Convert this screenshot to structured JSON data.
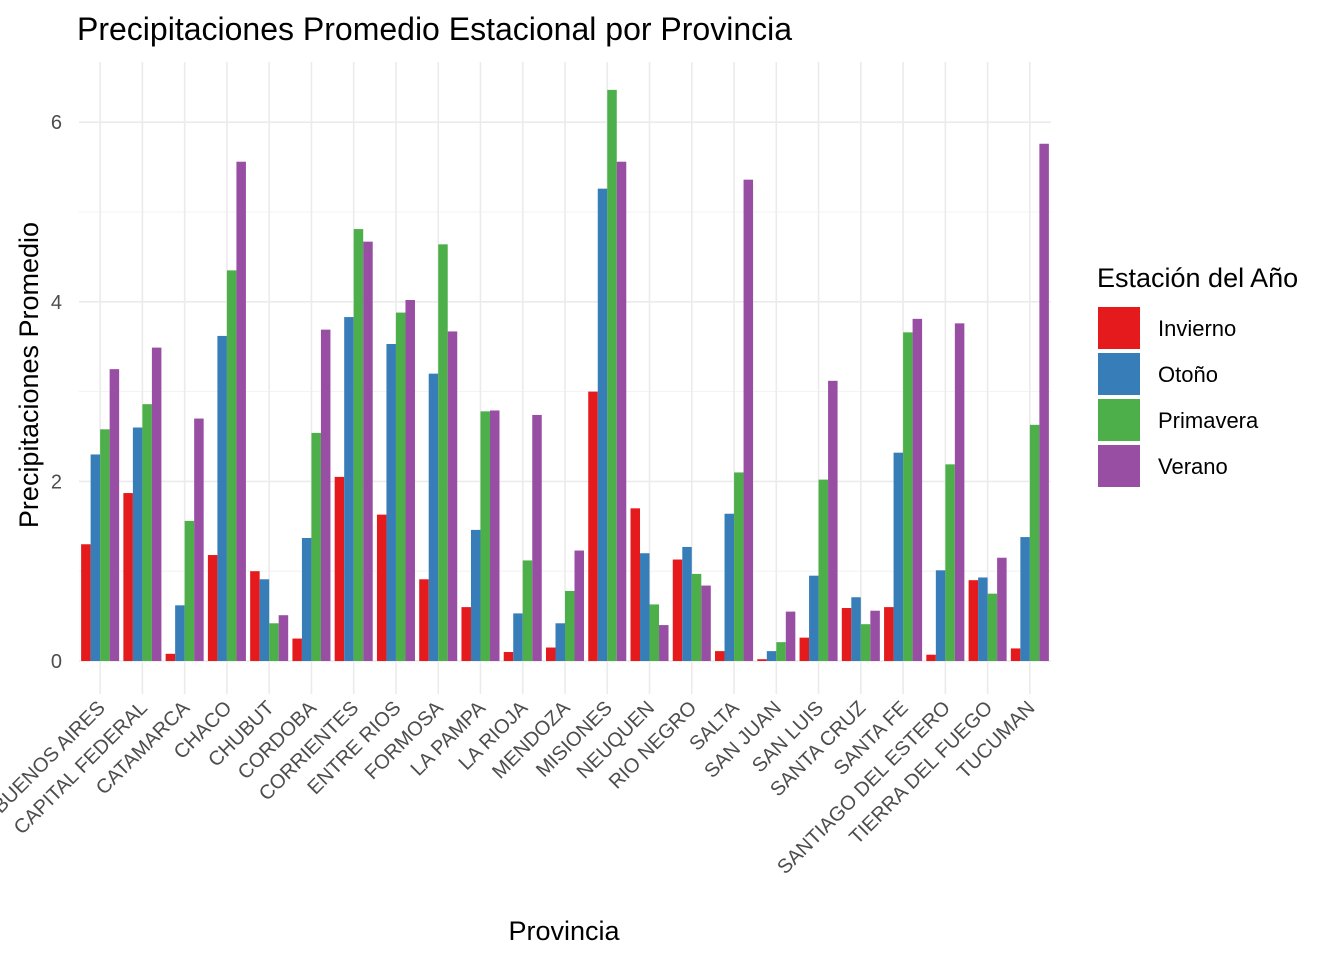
{
  "chart_data": {
    "type": "bar",
    "title": "Precipitaciones Promedio Estacional por Provincia",
    "xlabel": "Provincia",
    "ylabel": "Precipitaciones Promedio",
    "ylim": [
      0,
      6.6
    ],
    "y_ticks": [
      0,
      2,
      4,
      6
    ],
    "grid": true,
    "legend": {
      "title": "Estación del Año",
      "position": "right"
    },
    "categories": [
      "BUENOS AIRES",
      "CAPITAL FEDERAL",
      "CATAMARCA",
      "CHACO",
      "CHUBUT",
      "CORDOBA",
      "CORRIENTES",
      "ENTRE RIOS",
      "FORMOSA",
      "LA PAMPA",
      "LA RIOJA",
      "MENDOZA",
      "MISIONES",
      "NEUQUEN",
      "RIO NEGRO",
      "SALTA",
      "SAN JUAN",
      "SAN LUIS",
      "SANTA CRUZ",
      "SANTA FE",
      "SANTIAGO DEL ESTERO",
      "TIERRA DEL FUEGO",
      "TUCUMAN"
    ],
    "series": [
      {
        "name": "Invierno",
        "color": "#e41a1c",
        "values": [
          1.3,
          1.87,
          0.08,
          1.18,
          1.0,
          0.25,
          2.05,
          1.63,
          0.91,
          0.6,
          0.1,
          0.15,
          3.0,
          1.7,
          1.13,
          0.11,
          0.02,
          0.26,
          0.59,
          0.6,
          0.07,
          0.9,
          0.14
        ]
      },
      {
        "name": "Otoño",
        "color": "#377eb8",
        "values": [
          2.3,
          2.6,
          0.62,
          3.62,
          0.91,
          1.37,
          3.83,
          3.53,
          3.2,
          1.46,
          0.53,
          0.42,
          5.26,
          1.2,
          1.27,
          1.64,
          0.11,
          0.95,
          0.71,
          2.32,
          1.01,
          0.93,
          1.38
        ]
      },
      {
        "name": "Primavera",
        "color": "#4daf4a",
        "values": [
          2.58,
          2.86,
          1.56,
          4.35,
          0.42,
          2.54,
          4.81,
          3.88,
          4.64,
          2.78,
          1.12,
          0.78,
          6.36,
          0.63,
          0.97,
          2.1,
          0.21,
          2.02,
          0.41,
          3.66,
          2.19,
          0.75,
          2.63
        ]
      },
      {
        "name": "Verano",
        "color": "#984ea3",
        "values": [
          3.25,
          3.49,
          2.7,
          5.56,
          0.51,
          3.69,
          4.67,
          4.02,
          3.67,
          2.79,
          2.74,
          1.23,
          5.56,
          0.4,
          0.84,
          5.36,
          0.55,
          3.12,
          0.56,
          3.81,
          3.76,
          1.15,
          5.76
        ]
      }
    ]
  }
}
